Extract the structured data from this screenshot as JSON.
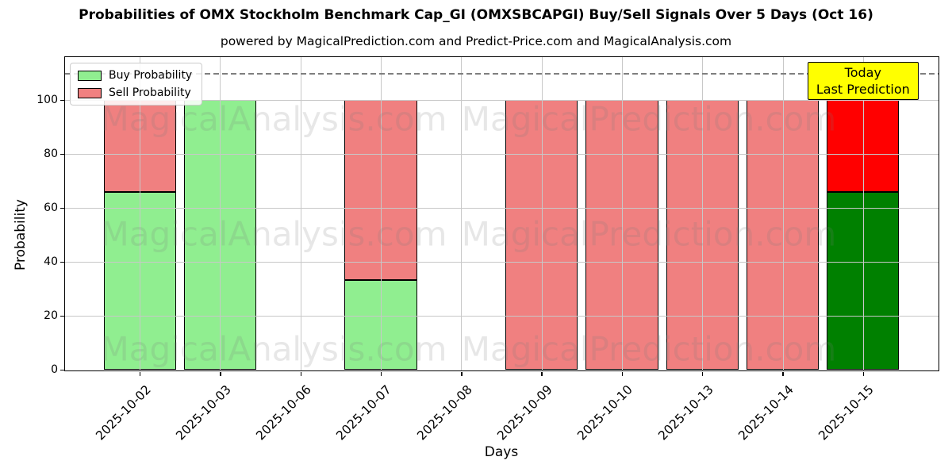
{
  "chart_data": {
    "type": "bar",
    "stacked": true,
    "title": "Probabilities of OMX Stockholm Benchmark Cap_GI (OMXSBCAPGI) Buy/Sell Signals Over 5 Days (Oct 16)",
    "subtitle": "powered by MagicalPrediction.com and Predict-Price.com and MagicalAnalysis.com",
    "xlabel": "Days",
    "ylabel": "Probability",
    "categories": [
      "2025-10-02",
      "2025-10-03",
      "2025-10-06",
      "2025-10-07",
      "2025-10-08",
      "2025-10-09",
      "2025-10-10",
      "2025-10-13",
      "2025-10-14",
      "2025-10-15"
    ],
    "series": [
      {
        "name": "Buy Probability",
        "color": "#90EE90",
        "values": [
          66,
          100,
          0,
          33.3,
          0,
          0,
          0,
          0,
          0,
          66
        ]
      },
      {
        "name": "Sell Probability",
        "color": "#F08080",
        "values": [
          34,
          0,
          0,
          66.7,
          0,
          100,
          100,
          100,
          100,
          34
        ]
      }
    ],
    "highlight_last_bar": {
      "buy_color": "#008000",
      "sell_color": "#FF0000"
    },
    "ylim": [
      0,
      116
    ],
    "yticks": [
      0,
      20,
      40,
      60,
      80,
      100
    ],
    "grid": true,
    "grid_color": "#c8c8c8",
    "threshold_line": {
      "y": 110,
      "style": "dashed",
      "color": "#7f7f7f"
    },
    "legend": {
      "position": "upper left",
      "entries": [
        {
          "label": "Buy Probability",
          "color": "#90EE90"
        },
        {
          "label": "Sell Probability",
          "color": "#F08080"
        }
      ]
    },
    "annotation": {
      "lines": [
        "Today",
        "Last Prediction"
      ],
      "bg_color": "#FFFF00",
      "border_color": "#000000",
      "anchor_category": "2025-10-15"
    },
    "watermarks": {
      "left_text": "MagicalAnalysis.com",
      "right_text": "MagicalPrediction.com"
    }
  }
}
